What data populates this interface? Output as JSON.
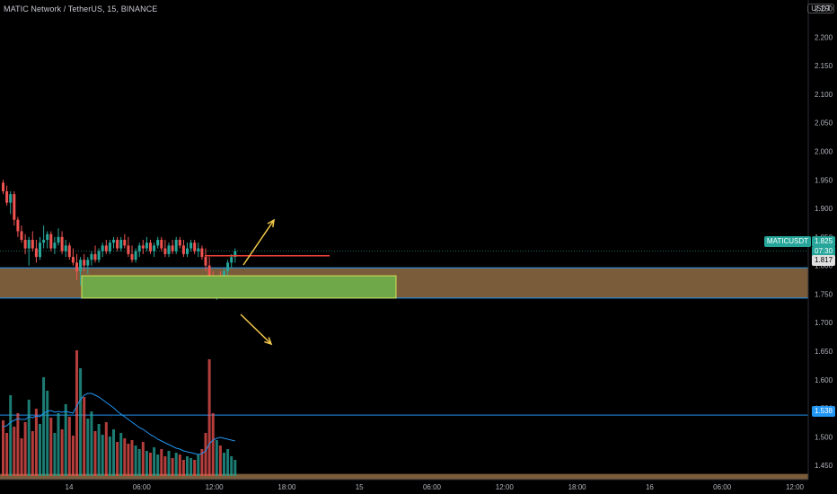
{
  "header": {
    "symbol_title": "MATIC Network / TetherUS, 15, BINANCE",
    "currency": "USDT"
  },
  "price_axis": {
    "ticks": [
      "2.250",
      "2.200",
      "2.150",
      "2.100",
      "2.050",
      "2.000",
      "1.950",
      "1.900",
      "1.850",
      "1.800",
      "1.750",
      "1.700",
      "1.650",
      "1.600",
      "1.550",
      "1.500",
      "1.450"
    ],
    "tick_values": [
      2.25,
      2.2,
      2.15,
      2.1,
      2.05,
      2.0,
      1.95,
      1.9,
      1.85,
      1.8,
      1.75,
      1.7,
      1.65,
      1.6,
      1.55,
      1.5,
      1.45
    ]
  },
  "time_axis": {
    "labels": [
      "14",
      "06:00",
      "12:00",
      "18:00",
      "15",
      "06:00",
      "12:00",
      "18:00",
      "16",
      "06:00",
      "12:00"
    ]
  },
  "badges": {
    "ticker": "MATICUSDT",
    "last_price": "1.825",
    "countdown": "07:30",
    "prev_price": "1.817",
    "line_price": "1.538"
  },
  "colors": {
    "up": "#26a69a",
    "down": "#ef5350",
    "zone": "#7a5c3a",
    "green_box": "#6fa848",
    "arrow": "#f2c94c",
    "hline": "#2196f3",
    "resistance": "#f44336"
  },
  "chart_data": {
    "type": "candlestick",
    "symbol": "MATICUSDT",
    "interval": "15",
    "exchange": "BINANCE",
    "ylim": [
      1.425,
      2.265
    ],
    "candles": [
      [
        1.945,
        1.95,
        1.925,
        1.93
      ],
      [
        1.93,
        1.94,
        1.905,
        1.91
      ],
      [
        1.91,
        1.93,
        1.89,
        1.925
      ],
      [
        1.925,
        1.93,
        1.87,
        1.88
      ],
      [
        1.88,
        1.885,
        1.85,
        1.86
      ],
      [
        1.86,
        1.87,
        1.84,
        1.845
      ],
      [
        1.845,
        1.855,
        1.82,
        1.83
      ],
      [
        1.83,
        1.85,
        1.8,
        1.845
      ],
      [
        1.845,
        1.86,
        1.825,
        1.83
      ],
      [
        1.83,
        1.845,
        1.805,
        1.815
      ],
      [
        1.815,
        1.85,
        1.81,
        1.84
      ],
      [
        1.84,
        1.87,
        1.83,
        1.845
      ],
      [
        1.845,
        1.86,
        1.83,
        1.855
      ],
      [
        1.855,
        1.86,
        1.825,
        1.83
      ],
      [
        1.83,
        1.85,
        1.82,
        1.84
      ],
      [
        1.84,
        1.865,
        1.835,
        1.85
      ],
      [
        1.85,
        1.86,
        1.82,
        1.825
      ],
      [
        1.825,
        1.845,
        1.815,
        1.835
      ],
      [
        1.835,
        1.84,
        1.81,
        1.815
      ],
      [
        1.815,
        1.83,
        1.8,
        1.805
      ],
      [
        1.805,
        1.82,
        1.775,
        1.79
      ],
      [
        1.79,
        1.815,
        1.765,
        1.81
      ],
      [
        1.81,
        1.82,
        1.79,
        1.8
      ],
      [
        1.8,
        1.815,
        1.785,
        1.81
      ],
      [
        1.81,
        1.825,
        1.8,
        1.82
      ],
      [
        1.82,
        1.835,
        1.805,
        1.81
      ],
      [
        1.81,
        1.83,
        1.805,
        1.825
      ],
      [
        1.825,
        1.84,
        1.815,
        1.835
      ],
      [
        1.835,
        1.845,
        1.82,
        1.825
      ],
      [
        1.825,
        1.845,
        1.82,
        1.84
      ],
      [
        1.84,
        1.85,
        1.83,
        1.845
      ],
      [
        1.845,
        1.85,
        1.825,
        1.83
      ],
      [
        1.83,
        1.85,
        1.825,
        1.845
      ],
      [
        1.845,
        1.855,
        1.83,
        1.835
      ],
      [
        1.835,
        1.85,
        1.815,
        1.82
      ],
      [
        1.82,
        1.835,
        1.805,
        1.81
      ],
      [
        1.81,
        1.83,
        1.805,
        1.825
      ],
      [
        1.825,
        1.84,
        1.815,
        1.835
      ],
      [
        1.835,
        1.845,
        1.82,
        1.83
      ],
      [
        1.83,
        1.85,
        1.825,
        1.84
      ],
      [
        1.84,
        1.845,
        1.82,
        1.825
      ],
      [
        1.825,
        1.84,
        1.815,
        1.835
      ],
      [
        1.835,
        1.85,
        1.83,
        1.845
      ],
      [
        1.845,
        1.85,
        1.825,
        1.83
      ],
      [
        1.83,
        1.845,
        1.815,
        1.82
      ],
      [
        1.82,
        1.84,
        1.815,
        1.835
      ],
      [
        1.835,
        1.845,
        1.82,
        1.825
      ],
      [
        1.825,
        1.85,
        1.82,
        1.845
      ],
      [
        1.845,
        1.85,
        1.83,
        1.835
      ],
      [
        1.835,
        1.845,
        1.815,
        1.82
      ],
      [
        1.82,
        1.84,
        1.815,
        1.83
      ],
      [
        1.83,
        1.845,
        1.825,
        1.84
      ],
      [
        1.84,
        1.845,
        1.82,
        1.825
      ],
      [
        1.825,
        1.84,
        1.815,
        1.83
      ],
      [
        1.83,
        1.835,
        1.81,
        1.815
      ],
      [
        1.815,
        1.83,
        1.79,
        1.8
      ],
      [
        1.8,
        1.815,
        1.76,
        1.77
      ],
      [
        1.77,
        1.79,
        1.745,
        1.755
      ],
      [
        1.755,
        1.78,
        1.74,
        1.775
      ],
      [
        1.775,
        1.79,
        1.76,
        1.765
      ],
      [
        1.765,
        1.795,
        1.76,
        1.79
      ],
      [
        1.79,
        1.81,
        1.78,
        1.805
      ],
      [
        1.805,
        1.82,
        1.795,
        1.815
      ],
      [
        1.815,
        1.83,
        1.805,
        1.825
      ]
    ],
    "volume": [
      62,
      48,
      90,
      55,
      70,
      42,
      60,
      85,
      50,
      75,
      58,
      110,
      95,
      65,
      48,
      70,
      52,
      80,
      66,
      45,
      140,
      120,
      88,
      64,
      72,
      50,
      58,
      46,
      60,
      44,
      52,
      38,
      48,
      42,
      36,
      40,
      34,
      30,
      38,
      28,
      26,
      32,
      24,
      30,
      22,
      28,
      20,
      26,
      24,
      18,
      22,
      20,
      18,
      24,
      30,
      48,
      130,
      70,
      40,
      34,
      26,
      30,
      22,
      18
    ],
    "volume_ma": [
      55,
      56,
      60,
      62,
      64,
      63,
      63,
      66,
      65,
      67,
      66,
      70,
      72,
      73,
      71,
      72,
      71,
      72,
      71,
      70,
      78,
      85,
      90,
      92,
      92,
      90,
      88,
      85,
      82,
      79,
      76,
      72,
      69,
      66,
      63,
      60,
      57,
      54,
      52,
      49,
      46,
      44,
      41,
      39,
      37,
      35,
      33,
      31,
      30,
      28,
      27,
      26,
      25,
      24,
      25,
      28,
      36,
      40,
      42,
      43,
      42,
      41,
      40,
      39
    ],
    "annotations": {
      "supply_zone": [
        1.743,
        1.796
      ],
      "green_box": [
        1.743,
        1.782
      ],
      "resistance_line": 1.817,
      "horizontal_line": 1.538,
      "volume_band": [
        1.425,
        1.435
      ]
    }
  }
}
